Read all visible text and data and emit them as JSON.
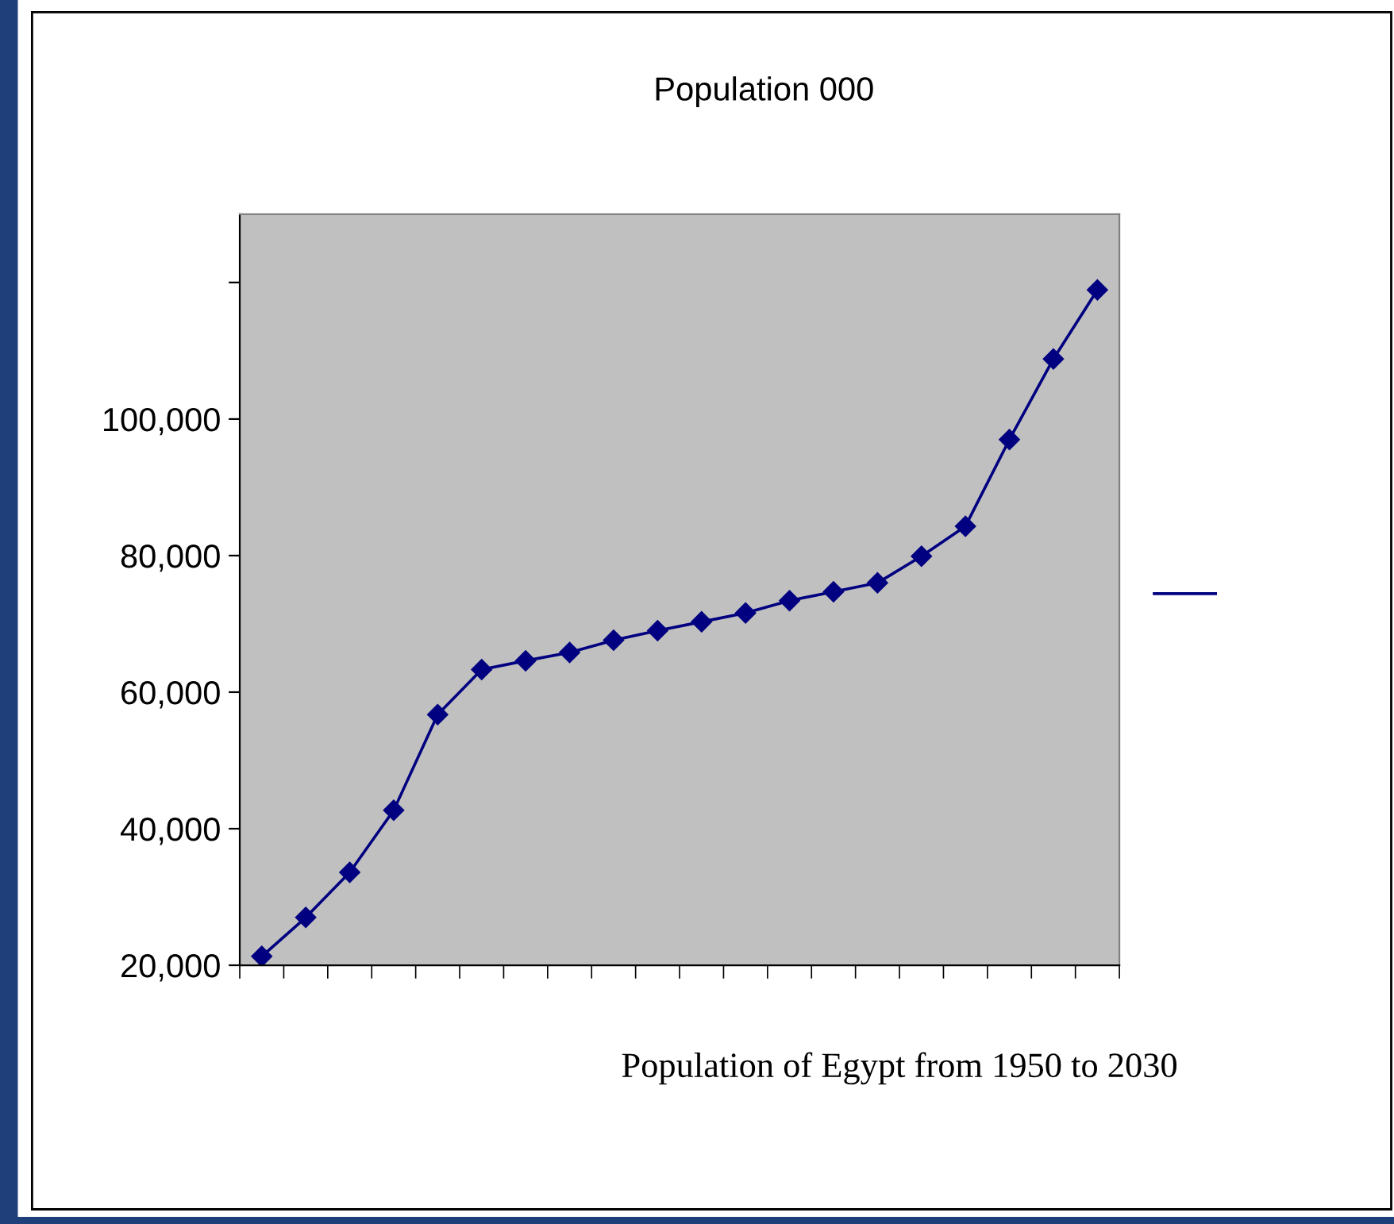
{
  "chart_data": {
    "type": "line",
    "title": "Population 000",
    "xlabel": "Population of Egypt from 1950 to 2030",
    "categories": [
      null,
      null,
      null,
      null,
      null,
      null,
      null,
      null,
      null,
      null,
      null,
      null,
      null,
      null,
      null,
      null,
      null,
      null,
      null,
      null
    ],
    "series": [
      {
        "color": "#000080",
        "values": [
          21300,
          27000,
          33600,
          42700,
          56700,
          63300,
          64600,
          65800,
          67600,
          69000,
          70300,
          71600,
          73400,
          74700,
          76000,
          79900,
          84300,
          97000,
          108800,
          118900
        ]
      }
    ],
    "ylim": [
      20000,
      130000
    ],
    "yticks": [
      {
        "value": 20000,
        "label": "20,000"
      },
      {
        "value": 40000,
        "label": "40,000"
      },
      {
        "value": 60000,
        "label": "60,000"
      },
      {
        "value": 80000,
        "label": "80,000"
      },
      {
        "value": 100000,
        "label": "100,000"
      },
      {
        "value": 120000,
        "label": null
      }
    ],
    "marker": "diamond",
    "line_style": "solid",
    "grid": false
  }
}
